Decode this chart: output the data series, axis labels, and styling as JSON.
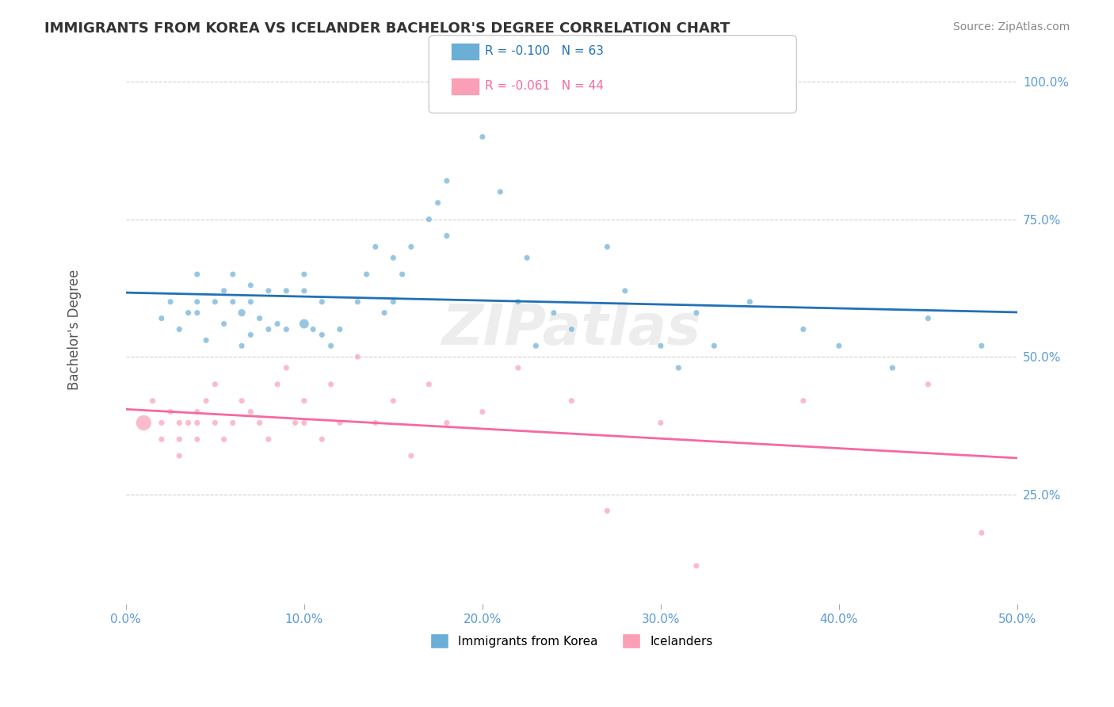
{
  "title": "IMMIGRANTS FROM KOREA VS ICELANDER BACHELOR'S DEGREE CORRELATION CHART",
  "source": "Source: ZipAtlas.com",
  "xlabel": "",
  "ylabel": "Bachelor's Degree",
  "xmin": 0.0,
  "xmax": 0.5,
  "ymin": 0.05,
  "ymax": 1.05,
  "xticks": [
    0.0,
    0.1,
    0.2,
    0.3,
    0.4,
    0.5
  ],
  "xticklabels": [
    "0.0%",
    "10.0%",
    "20.0%",
    "30.0%",
    "40.0%",
    "50.0%"
  ],
  "yticks": [
    0.25,
    0.5,
    0.75,
    1.0
  ],
  "yticklabels": [
    "25.0%",
    "50.0%",
    "75.0%",
    "100.0%"
  ],
  "blue_color": "#6baed6",
  "pink_color": "#fa9fb5",
  "blue_line_color": "#2171b5",
  "pink_line_color": "#f768a1",
  "blue_R": -0.1,
  "blue_N": 63,
  "pink_R": -0.061,
  "pink_N": 44,
  "legend_label_blue": "Immigrants from Korea",
  "legend_label_pink": "Icelanders",
  "watermark": "ZIPatlas",
  "blue_scatter_x": [
    0.02,
    0.025,
    0.03,
    0.035,
    0.04,
    0.04,
    0.04,
    0.045,
    0.05,
    0.055,
    0.055,
    0.06,
    0.06,
    0.065,
    0.065,
    0.07,
    0.07,
    0.07,
    0.075,
    0.08,
    0.08,
    0.085,
    0.09,
    0.09,
    0.1,
    0.1,
    0.1,
    0.105,
    0.11,
    0.11,
    0.115,
    0.12,
    0.13,
    0.135,
    0.14,
    0.145,
    0.15,
    0.15,
    0.155,
    0.16,
    0.17,
    0.175,
    0.18,
    0.18,
    0.2,
    0.21,
    0.22,
    0.225,
    0.23,
    0.24,
    0.25,
    0.27,
    0.28,
    0.3,
    0.31,
    0.32,
    0.33,
    0.35,
    0.38,
    0.4,
    0.43,
    0.45,
    0.48
  ],
  "blue_scatter_y": [
    0.57,
    0.6,
    0.55,
    0.58,
    0.6,
    0.65,
    0.58,
    0.53,
    0.6,
    0.62,
    0.56,
    0.6,
    0.65,
    0.52,
    0.58,
    0.54,
    0.6,
    0.63,
    0.57,
    0.55,
    0.62,
    0.56,
    0.55,
    0.62,
    0.56,
    0.62,
    0.65,
    0.55,
    0.6,
    0.54,
    0.52,
    0.55,
    0.6,
    0.65,
    0.7,
    0.58,
    0.68,
    0.6,
    0.65,
    0.7,
    0.75,
    0.78,
    0.72,
    0.82,
    0.9,
    0.8,
    0.6,
    0.68,
    0.52,
    0.58,
    0.55,
    0.7,
    0.62,
    0.52,
    0.48,
    0.58,
    0.52,
    0.6,
    0.55,
    0.52,
    0.48,
    0.57,
    0.52
  ],
  "blue_scatter_sizes": [
    30,
    30,
    30,
    30,
    30,
    30,
    30,
    30,
    30,
    30,
    30,
    30,
    30,
    30,
    50,
    30,
    30,
    30,
    30,
    30,
    30,
    30,
    30,
    30,
    80,
    30,
    30,
    30,
    30,
    30,
    30,
    30,
    30,
    30,
    30,
    30,
    30,
    30,
    30,
    30,
    30,
    30,
    30,
    30,
    30,
    30,
    30,
    30,
    30,
    30,
    30,
    30,
    30,
    30,
    30,
    30,
    30,
    30,
    30,
    30,
    30,
    30,
    30
  ],
  "pink_scatter_x": [
    0.01,
    0.015,
    0.02,
    0.02,
    0.025,
    0.03,
    0.03,
    0.03,
    0.035,
    0.04,
    0.04,
    0.04,
    0.045,
    0.05,
    0.05,
    0.055,
    0.06,
    0.065,
    0.07,
    0.075,
    0.08,
    0.085,
    0.09,
    0.095,
    0.1,
    0.1,
    0.11,
    0.115,
    0.12,
    0.13,
    0.14,
    0.15,
    0.16,
    0.17,
    0.18,
    0.2,
    0.22,
    0.25,
    0.27,
    0.3,
    0.32,
    0.38,
    0.45,
    0.48
  ],
  "pink_scatter_y": [
    0.38,
    0.42,
    0.35,
    0.38,
    0.4,
    0.35,
    0.38,
    0.32,
    0.38,
    0.35,
    0.4,
    0.38,
    0.42,
    0.45,
    0.38,
    0.35,
    0.38,
    0.42,
    0.4,
    0.38,
    0.35,
    0.45,
    0.48,
    0.38,
    0.42,
    0.38,
    0.35,
    0.45,
    0.38,
    0.5,
    0.38,
    0.42,
    0.32,
    0.45,
    0.38,
    0.4,
    0.48,
    0.42,
    0.22,
    0.38,
    0.12,
    0.42,
    0.45,
    0.18
  ],
  "pink_scatter_sizes": [
    200,
    30,
    30,
    30,
    30,
    30,
    30,
    30,
    30,
    30,
    30,
    30,
    30,
    30,
    30,
    30,
    30,
    30,
    30,
    30,
    30,
    30,
    30,
    30,
    30,
    30,
    30,
    30,
    30,
    30,
    30,
    30,
    30,
    30,
    30,
    30,
    30,
    30,
    30,
    30,
    30,
    30,
    30,
    30
  ]
}
